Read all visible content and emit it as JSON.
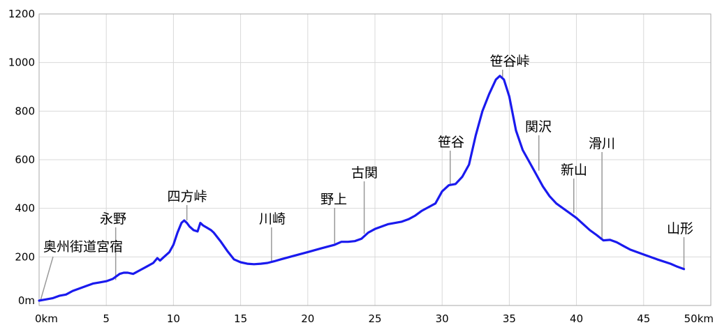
{
  "chart_data": {
    "type": "line",
    "title": "",
    "xlabel": "",
    "ylabel": "",
    "xlim": [
      0,
      50
    ],
    "ylim": [
      0,
      1200
    ],
    "grid": true,
    "line_color": "#1a1aee",
    "x_ticks": [
      {
        "value": 0,
        "label": "0km"
      },
      {
        "value": 5,
        "label": "5"
      },
      {
        "value": 10,
        "label": "10"
      },
      {
        "value": 15,
        "label": "15"
      },
      {
        "value": 20,
        "label": "20"
      },
      {
        "value": 25,
        "label": "25"
      },
      {
        "value": 30,
        "label": "30"
      },
      {
        "value": 35,
        "label": "35"
      },
      {
        "value": 40,
        "label": "40"
      },
      {
        "value": 45,
        "label": "45"
      },
      {
        "value": 50,
        "label": "50km"
      }
    ],
    "y_ticks": [
      {
        "value": 0,
        "label": "0m"
      },
      {
        "value": 200,
        "label": "200"
      },
      {
        "value": 400,
        "label": "400"
      },
      {
        "value": 600,
        "label": "600"
      },
      {
        "value": 800,
        "label": "800"
      },
      {
        "value": 1000,
        "label": "1000"
      },
      {
        "value": 1200,
        "label": "1200"
      }
    ],
    "series": [
      {
        "x": [
          0,
          0.5,
          1,
          1.5,
          2,
          2.5,
          3,
          3.5,
          4,
          4.5,
          5,
          5.5,
          6,
          6.3,
          6.6,
          7,
          7.5,
          8,
          8.5,
          8.8,
          9,
          9.3,
          9.7,
          10,
          10.3,
          10.6,
          10.8,
          11,
          11.2,
          11.5,
          11.8,
          12,
          12.2,
          12.5,
          12.8,
          13,
          13.5,
          14,
          14.5,
          15,
          15.5,
          16,
          16.5,
          17,
          17.5,
          18,
          19,
          20,
          21,
          22,
          22.5,
          23,
          23.5,
          24,
          24.5,
          25,
          25.5,
          26,
          26.5,
          27,
          27.5,
          28,
          28.5,
          29,
          29.5,
          30,
          30.5,
          31,
          31.5,
          32,
          32.5,
          33,
          33.5,
          34,
          34.3,
          34.6,
          35,
          35.5,
          36,
          36.5,
          37,
          37.5,
          38,
          38.5,
          39,
          39.5,
          40,
          40.5,
          41,
          41.5,
          42,
          42.5,
          43,
          43.5,
          44,
          45,
          46,
          47,
          47.5,
          48
        ],
        "y": [
          20,
          25,
          30,
          40,
          45,
          60,
          70,
          80,
          90,
          95,
          100,
          110,
          130,
          135,
          135,
          130,
          145,
          160,
          175,
          195,
          185,
          200,
          220,
          250,
          300,
          340,
          350,
          340,
          325,
          310,
          305,
          340,
          330,
          320,
          310,
          300,
          265,
          225,
          190,
          178,
          172,
          170,
          172,
          175,
          182,
          190,
          205,
          220,
          235,
          250,
          262,
          262,
          265,
          275,
          300,
          315,
          325,
          335,
          340,
          345,
          355,
          370,
          390,
          405,
          420,
          470,
          495,
          500,
          530,
          580,
          700,
          800,
          870,
          930,
          945,
          930,
          860,
          720,
          640,
          590,
          540,
          490,
          450,
          420,
          400,
          380,
          360,
          335,
          310,
          290,
          268,
          270,
          260,
          245,
          230,
          210,
          190,
          172,
          160,
          150
        ]
      }
    ],
    "annotations": [
      {
        "label": "奥州街道宮宿",
        "x": 0.1,
        "y": 20
      },
      {
        "label": "永野",
        "x": 5.7,
        "y": 105
      },
      {
        "label": "四方峠",
        "x": 11.0,
        "y": 350
      },
      {
        "label": "川崎",
        "x": 17.3,
        "y": 178
      },
      {
        "label": "野上",
        "x": 22.0,
        "y": 255
      },
      {
        "label": "古関",
        "x": 24.2,
        "y": 295
      },
      {
        "label": "笹谷",
        "x": 30.6,
        "y": 495
      },
      {
        "label": "笹谷峠",
        "x": 34.5,
        "y": 940
      },
      {
        "label": "関沢",
        "x": 37.2,
        "y": 555
      },
      {
        "label": "新山",
        "x": 39.8,
        "y": 380
      },
      {
        "label": "滑川",
        "x": 41.9,
        "y": 275
      },
      {
        "label": "山形",
        "x": 48.0,
        "y": 150
      }
    ]
  }
}
